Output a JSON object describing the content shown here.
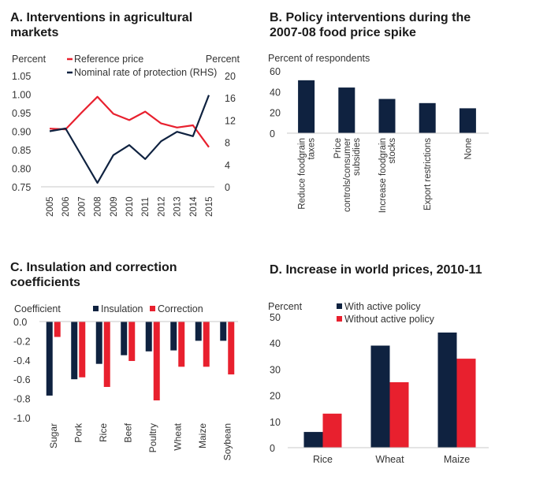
{
  "colors": {
    "navy": "#0f2240",
    "red": "#e8202e",
    "axis": "#c8c8c8"
  },
  "chart_data": [
    {
      "id": "A",
      "type": "line",
      "title": "A. Interventions in agricultural markets",
      "ylabel_left": "Percent",
      "ylabel_right": "Percent",
      "x": [
        "2005",
        "2006",
        "2007",
        "2008",
        "2009",
        "2010",
        "2011",
        "2012",
        "2013",
        "2014",
        "2015"
      ],
      "ylim_left": [
        0.75,
        1.05
      ],
      "yticks_left": [
        "1.05",
        "1.00",
        "0.95",
        "0.90",
        "0.85",
        "0.80",
        "0.75"
      ],
      "ylim_right": [
        0,
        20
      ],
      "yticks_right": [
        "20",
        "16",
        "12",
        "8",
        "4",
        "0"
      ],
      "series": [
        {
          "name": "Reference price",
          "axis": "left",
          "color": "#e8202e",
          "values": [
            0.907,
            0.905,
            0.95,
            0.993,
            0.947,
            0.93,
            0.953,
            0.921,
            0.91,
            0.916,
            0.857
          ]
        },
        {
          "name": "Nominal rate of protection (RHS)",
          "axis": "right",
          "color": "#0f2240",
          "values": [
            10.0,
            10.5,
            5.6,
            0.7,
            5.7,
            7.5,
            5.0,
            8.2,
            9.9,
            9.1,
            16.5
          ]
        }
      ],
      "legend": "top-center"
    },
    {
      "id": "B",
      "type": "bar",
      "title": "B. Policy interventions during the 2007-08 food price spike",
      "ylabel": "Percent of respondents",
      "ylim": [
        0,
        60
      ],
      "yticks": [
        "60",
        "40",
        "20",
        "0"
      ],
      "categories": [
        [
          "Reduce foodgrain",
          "taxes"
        ],
        [
          "Price",
          "controls/consumer",
          "subsidies"
        ],
        [
          "Increase foodgrain",
          "stocks"
        ],
        [
          "Export restrictions"
        ],
        [
          "None"
        ]
      ],
      "values": [
        51,
        44,
        33,
        29,
        24
      ],
      "color": "#0f2240"
    },
    {
      "id": "C",
      "type": "bar",
      "title": "C. Insulation and correction coefficients",
      "ylabel": "Coefficient",
      "ylim": [
        -1.0,
        0.0
      ],
      "yticks": [
        "0.0",
        "-0.2",
        "-0.4",
        "-0.6",
        "-0.8",
        "-1.0"
      ],
      "categories": [
        "Sugar",
        "Pork",
        "Rice",
        "Beef",
        "Poultry",
        "Wheat",
        "Maize",
        "Soybean"
      ],
      "series": [
        {
          "name": "Insulation",
          "color": "#0f2240",
          "values": [
            -0.77,
            -0.6,
            -0.44,
            -0.35,
            -0.31,
            -0.3,
            -0.2,
            -0.2
          ]
        },
        {
          "name": "Correction",
          "color": "#e8202e",
          "values": [
            -0.16,
            -0.58,
            -0.68,
            -0.41,
            -0.82,
            -0.47,
            -0.47,
            -0.55
          ]
        }
      ],
      "legend": "top-center"
    },
    {
      "id": "D",
      "type": "bar",
      "title": "D. Increase in world prices, 2010-11",
      "ylabel": "Percent",
      "ylim": [
        0,
        50
      ],
      "yticks": [
        "50",
        "40",
        "30",
        "20",
        "10",
        "0"
      ],
      "categories": [
        "Rice",
        "Wheat",
        "Maize"
      ],
      "series": [
        {
          "name": "With active policy",
          "color": "#0f2240",
          "values": [
            6,
            39,
            44
          ]
        },
        {
          "name": "Without active policy",
          "color": "#e8202e",
          "values": [
            13,
            25,
            34
          ]
        }
      ],
      "legend": "top-center"
    }
  ]
}
